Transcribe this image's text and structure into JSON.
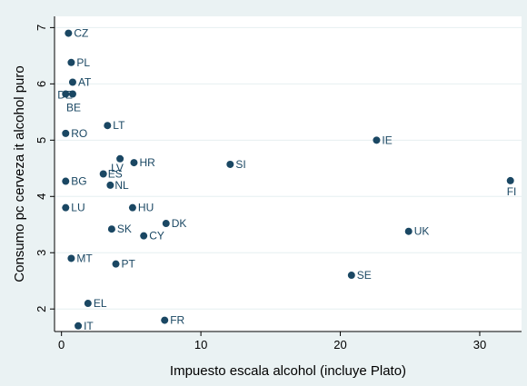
{
  "chart_data": {
    "type": "scatter",
    "xlabel": "Impuesto escala alcohol (incluye Plato)",
    "ylabel": "Consumo pc cerveza it alcohol puro",
    "xlim": [
      -0.5,
      33
    ],
    "ylim": [
      1.6,
      7.2
    ],
    "xticks": [
      0,
      10,
      20,
      30
    ],
    "yticks": [
      2,
      3,
      4,
      5,
      6,
      7
    ],
    "grid": "horizontal",
    "marker_color": "#1a4763",
    "background_color": "#eaf2f3",
    "points": [
      {
        "label": "CZ",
        "x": 0.5,
        "y": 6.9
      },
      {
        "label": "PL",
        "x": 0.7,
        "y": 6.38
      },
      {
        "label": "AT",
        "x": 0.8,
        "y": 6.03
      },
      {
        "label": "DE",
        "x": 0.3,
        "y": 5.82
      },
      {
        "label": "BE",
        "x": 0.8,
        "y": 5.82
      },
      {
        "label": "LT",
        "x": 3.3,
        "y": 5.26
      },
      {
        "label": "RO",
        "x": 0.3,
        "y": 5.12
      },
      {
        "label": "IE",
        "x": 22.6,
        "y": 5.0
      },
      {
        "label": "LV",
        "x": 4.2,
        "y": 4.67
      },
      {
        "label": "HR",
        "x": 5.2,
        "y": 4.6
      },
      {
        "label": "SI",
        "x": 12.1,
        "y": 4.57
      },
      {
        "label": "ES",
        "x": 3.0,
        "y": 4.4
      },
      {
        "label": "BG",
        "x": 0.3,
        "y": 4.27
      },
      {
        "label": "NL",
        "x": 3.5,
        "y": 4.2
      },
      {
        "label": "FI",
        "x": 32.2,
        "y": 4.28
      },
      {
        "label": "LU",
        "x": 0.3,
        "y": 3.8
      },
      {
        "label": "HU",
        "x": 5.1,
        "y": 3.8
      },
      {
        "label": "DK",
        "x": 7.5,
        "y": 3.52
      },
      {
        "label": "SK",
        "x": 3.6,
        "y": 3.42
      },
      {
        "label": "CY",
        "x": 5.9,
        "y": 3.3
      },
      {
        "label": "UK",
        "x": 24.9,
        "y": 3.38
      },
      {
        "label": "MT",
        "x": 0.7,
        "y": 2.9
      },
      {
        "label": "PT",
        "x": 3.9,
        "y": 2.8
      },
      {
        "label": "SE",
        "x": 20.8,
        "y": 2.6
      },
      {
        "label": "EL",
        "x": 1.9,
        "y": 2.1
      },
      {
        "label": "FR",
        "x": 7.4,
        "y": 1.8
      },
      {
        "label": "IT",
        "x": 1.2,
        "y": 1.7
      }
    ]
  }
}
